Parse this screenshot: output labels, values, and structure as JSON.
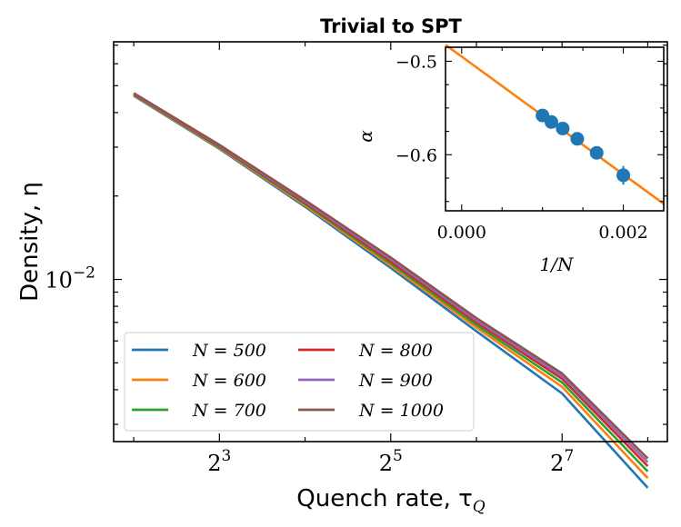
{
  "chart_data": [
    {
      "type": "line",
      "title": "Trivial to SPT",
      "xlabel": "Quench rate, τ",
      "xlabel_sub": "Q",
      "ylabel": "Density, η",
      "xscale": "log2",
      "yscale": "log10",
      "xticks": [
        {
          "value": 8,
          "base": "2",
          "exp": "3"
        },
        {
          "value": 32,
          "base": "2",
          "exp": "5"
        },
        {
          "value": 128,
          "base": "2",
          "exp": "7"
        }
      ],
      "yticks": [
        {
          "value": 0.01,
          "base": "10",
          "exp": "−2"
        }
      ],
      "xlim": [
        3.4,
        300
      ],
      "ylim": [
        0.0026,
        0.072
      ],
      "legend_loc": "lower left",
      "x": [
        4,
        8,
        16,
        32,
        64,
        128,
        256
      ],
      "series": [
        {
          "name": "N = 500",
          "color": "#1f77b4",
          "values": [
            0.046,
            0.0296,
            0.0183,
            0.011,
            0.0065,
            0.00388,
            0.00177
          ]
        },
        {
          "name": "N = 600",
          "color": "#ff7f0e",
          "values": [
            0.0462,
            0.0298,
            0.0185,
            0.0112,
            0.0067,
            0.0041,
            0.00192
          ]
        },
        {
          "name": "N = 700",
          "color": "#2ca02c",
          "values": [
            0.0464,
            0.03,
            0.0187,
            0.0114,
            0.00685,
            0.00425,
            0.00203
          ]
        },
        {
          "name": "N = 800",
          "color": "#d62728",
          "values": [
            0.0466,
            0.0302,
            0.0189,
            0.0116,
            0.007,
            0.00438,
            0.00212
          ]
        },
        {
          "name": "N = 900",
          "color": "#9467bd",
          "values": [
            0.0468,
            0.0304,
            0.0191,
            0.0118,
            0.00712,
            0.00448,
            0.00219
          ]
        },
        {
          "name": "N = 1000",
          "color": "#8c564b",
          "values": [
            0.047,
            0.0306,
            0.0193,
            0.012,
            0.00725,
            0.00458,
            0.00226
          ]
        }
      ]
    },
    {
      "type": "scatter",
      "inset": true,
      "xlabel": "1/N",
      "ylabel": "α",
      "xlim": [
        -0.0002,
        0.0025
      ],
      "ylim": [
        -0.66,
        -0.485
      ],
      "xticks": [
        {
          "value": 0.0,
          "label": "0.000"
        },
        {
          "value": 0.002,
          "label": "0.002"
        }
      ],
      "yticks": [
        {
          "value": -0.5,
          "label": "−0.5"
        },
        {
          "value": -0.6,
          "label": "−0.6"
        }
      ],
      "points_color": "#1f77b4",
      "points": [
        {
          "x": 0.001,
          "y": -0.558
        },
        {
          "x": 0.00111,
          "y": -0.565
        },
        {
          "x": 0.00125,
          "y": -0.572
        },
        {
          "x": 0.00143,
          "y": -0.583
        },
        {
          "x": 0.00167,
          "y": -0.598
        },
        {
          "x": 0.002,
          "y": -0.622
        }
      ],
      "error_bars": [
        {
          "x": 0.002,
          "low": -0.632,
          "high": -0.612
        }
      ],
      "fit_color": "#ff7f0e",
      "fit": {
        "intercept": -0.495,
        "slope": -63
      }
    }
  ]
}
